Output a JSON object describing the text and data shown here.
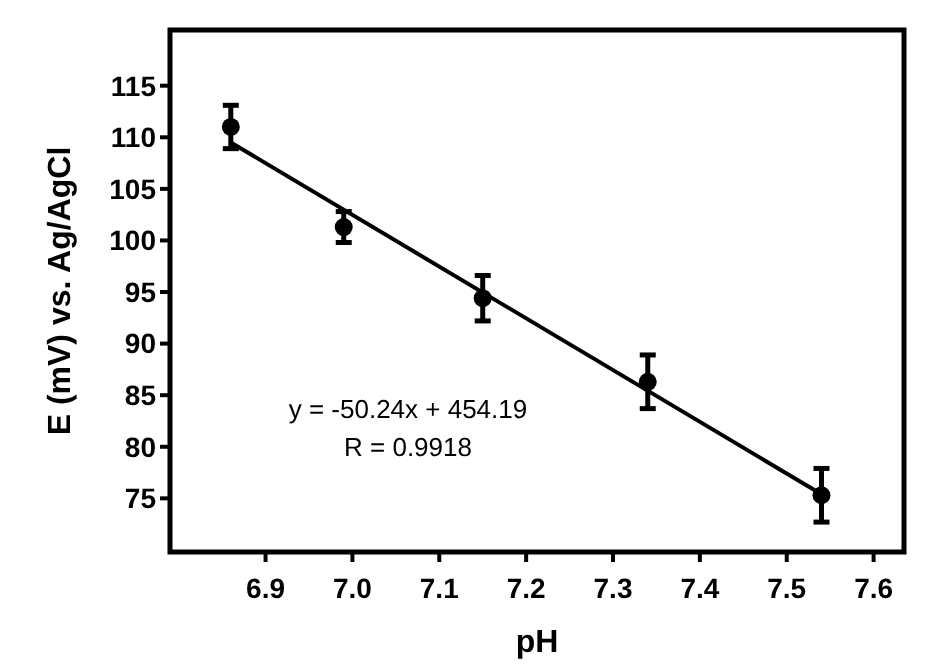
{
  "chart_data": {
    "type": "scatter",
    "xlabel": "pH",
    "ylabel": "E (mV) vs. Ag/AgCl",
    "xlim": [
      6.79,
      7.635
    ],
    "ylim": [
      69.8,
      120.4
    ],
    "xticks": [
      6.9,
      {
        "value": 7.0,
        "label": "7.0"
      },
      7.1,
      7.2,
      7.3,
      7.4,
      7.5,
      7.6
    ],
    "yticks": [
      75,
      80,
      85,
      90,
      95,
      100,
      105,
      110,
      115
    ],
    "grid": false,
    "series": [
      {
        "color": "#000000",
        "marker": "circle",
        "x": [
          6.86,
          6.99,
          7.15,
          7.34,
          7.54
        ],
        "values": [
          111.0,
          101.3,
          94.4,
          86.3,
          75.3
        ],
        "errors": [
          2.1,
          1.5,
          2.2,
          2.6,
          2.6
        ]
      },
      {
        "type": "line",
        "color": "#000000",
        "x": [
          6.86,
          7.54
        ],
        "values": [
          109.5,
          75.4
        ]
      }
    ],
    "annotations": [
      "y = -50.24x + 454.19",
      "R = 0.9918"
    ]
  }
}
